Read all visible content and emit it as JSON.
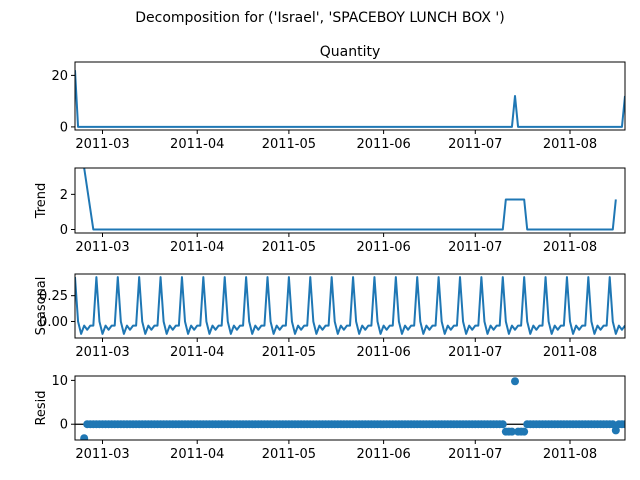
{
  "figure": {
    "suptitle": "Decomposition for ('Israel', 'SPACEBOY LUNCH BOX ')"
  },
  "colors": {
    "series": "#1f77b4",
    "axes": "#000000",
    "background": "#ffffff"
  },
  "chart_data": [
    {
      "type": "line",
      "title": "Quantity",
      "ylabel": "",
      "x_start": "2011-02-20",
      "x_end": "2011-08-19",
      "xticks": [
        "2011-03",
        "2011-04",
        "2011-05",
        "2011-06",
        "2011-07",
        "2011-08"
      ],
      "yticks": [
        0,
        20
      ],
      "ylim": [
        -1.2,
        25.2
      ],
      "points": [
        {
          "x": "2011-02-20",
          "y": 22
        },
        {
          "x": "2011-02-21",
          "y": 0
        },
        {
          "x": "2011-07-13",
          "y": 0
        },
        {
          "x": "2011-07-14",
          "y": 12
        },
        {
          "x": "2011-07-15",
          "y": 0
        },
        {
          "x": "2011-08-18",
          "y": 0
        },
        {
          "x": "2011-08-19",
          "y": 12
        }
      ]
    },
    {
      "type": "line",
      "title": "",
      "ylabel": "Trend",
      "x_start": "2011-02-20",
      "x_end": "2011-08-19",
      "xticks": [
        "2011-03",
        "2011-04",
        "2011-05",
        "2011-06",
        "2011-07",
        "2011-08"
      ],
      "yticks": [
        0,
        2
      ],
      "ylim": [
        -0.2,
        3.5
      ],
      "points": [
        {
          "x": "2011-02-23",
          "y": 3.5
        },
        {
          "x": "2011-02-26",
          "y": 0
        },
        {
          "x": "2011-07-10",
          "y": 0
        },
        {
          "x": "2011-07-11",
          "y": 1.71
        },
        {
          "x": "2011-07-17",
          "y": 1.71
        },
        {
          "x": "2011-07-18",
          "y": 0
        },
        {
          "x": "2011-08-15",
          "y": 0
        },
        {
          "x": "2011-08-16",
          "y": 1.71
        }
      ]
    },
    {
      "type": "line",
      "title": "",
      "ylabel": "Seasonal",
      "x_start": "2011-02-20",
      "x_end": "2011-08-19",
      "xticks": [
        "2011-03",
        "2011-04",
        "2011-05",
        "2011-06",
        "2011-07",
        "2011-08"
      ],
      "yticks": [
        0.0,
        0.25
      ],
      "ytick_labels": [
        "0.00",
        "0.25"
      ],
      "ylim": [
        -0.16,
        0.46
      ],
      "period_days": 7,
      "weekly_pattern": [
        0.43,
        0.0,
        -0.12,
        -0.04,
        -0.08,
        -0.04,
        -0.04
      ]
    },
    {
      "type": "scatter",
      "title": "",
      "ylabel": "Resid",
      "x_start": "2011-02-20",
      "x_end": "2011-08-19",
      "xticks": [
        "2011-03",
        "2011-04",
        "2011-05",
        "2011-06",
        "2011-07",
        "2011-08"
      ],
      "yticks": [
        0,
        10
      ],
      "ylim": [
        -3.6,
        11.0
      ],
      "baseline": 0,
      "default_resid": 0,
      "special_points": [
        {
          "x": "2011-02-23",
          "y": -3.2
        },
        {
          "x": "2011-07-11",
          "y": -1.7
        },
        {
          "x": "2011-07-12",
          "y": -1.7
        },
        {
          "x": "2011-07-13",
          "y": -1.7
        },
        {
          "x": "2011-07-14",
          "y": 9.8
        },
        {
          "x": "2011-07-15",
          "y": -1.7
        },
        {
          "x": "2011-07-16",
          "y": -1.7
        },
        {
          "x": "2011-07-17",
          "y": -1.7
        },
        {
          "x": "2011-08-16",
          "y": -1.4
        }
      ]
    }
  ]
}
